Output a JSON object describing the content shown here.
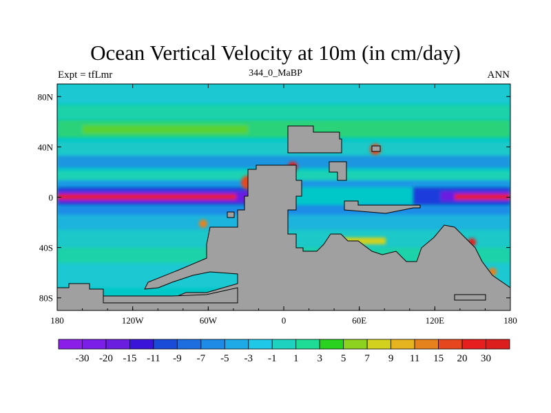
{
  "title": "Ocean Vertical Velocity at 10m (in cm/day)",
  "subtitle_left": "Expt = tfLmr",
  "subtitle_center": "344_0_MaBP",
  "subtitle_right": "ANN",
  "map": {
    "lon_range": [
      -180,
      180
    ],
    "lat_range": [
      -90,
      90
    ],
    "x_ticks": [
      {
        "lon": -180,
        "label": "180"
      },
      {
        "lon": -120,
        "label": "120W"
      },
      {
        "lon": -60,
        "label": "60W"
      },
      {
        "lon": 0,
        "label": "0"
      },
      {
        "lon": 60,
        "label": "60E"
      },
      {
        "lon": 120,
        "label": "120E"
      },
      {
        "lon": 180,
        "label": "180"
      }
    ],
    "y_ticks": [
      {
        "lat": 80,
        "label": "80N"
      },
      {
        "lat": 40,
        "label": "40N"
      },
      {
        "lat": 0,
        "label": "0"
      },
      {
        "lat": -40,
        "label": "40S"
      },
      {
        "lat": -80,
        "label": "80S"
      }
    ],
    "land_color": "#a0a0a0",
    "ocean_background_color": "#00c8c8"
  },
  "colorbar": {
    "labels": [
      "-30",
      "-20",
      "-15",
      "-11",
      "-9",
      "-7",
      "-5",
      "-3",
      "-1",
      "1",
      "3",
      "5",
      "7",
      "9",
      "11",
      "15",
      "20",
      "30"
    ],
    "colors": [
      "#8c1eea",
      "#7a1ee8",
      "#6a1fe0",
      "#3a14d8",
      "#1a4ad8",
      "#1e6ee0",
      "#1e8ce6",
      "#1eaae6",
      "#1ec8e6",
      "#1ed2c0",
      "#1edc96",
      "#28d21e",
      "#8cd21e",
      "#d2d21e",
      "#e6b41e",
      "#e6821e",
      "#e6461e",
      "#e61e1e",
      "#dc1e1e"
    ]
  }
}
